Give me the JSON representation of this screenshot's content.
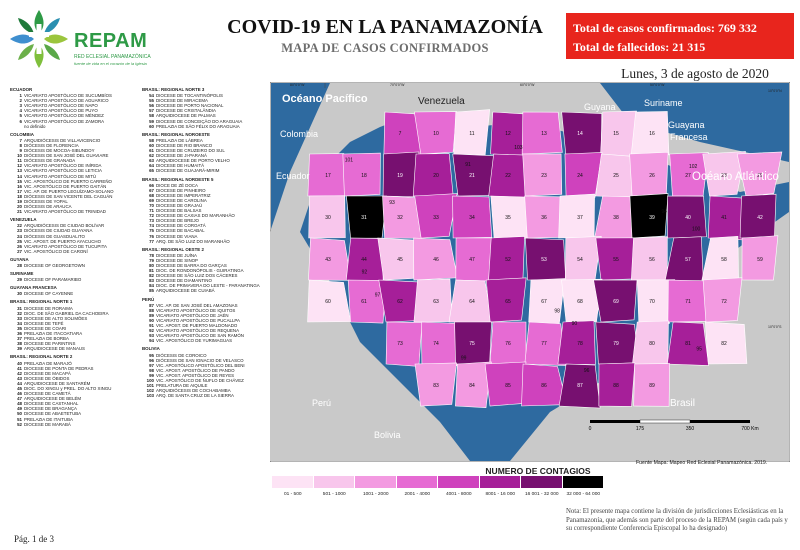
{
  "header": {
    "org_name": "REPAM",
    "org_sub": "RED ECLESIAL PANAMAZÓNICA",
    "org_tagline": "fuente de vida en el corazón de la Iglesia",
    "title": "COVID-19 EN LA PANAMAZONÍA",
    "subtitle": "MAPA DE CASOS CONFIRMADOS",
    "confirmed": "Total de casos confirmados: 769 332",
    "deaths": "Total de fallecidos: 21 315",
    "date": "Lunes, 3 de agosto de 2020"
  },
  "colors": {
    "brand_green": "#2e9a46",
    "stats_red": "#e8251d",
    "sea": "#2e6aa0",
    "bins": [
      "#fde3f5",
      "#f8c6ec",
      "#f39ae1",
      "#e66bd3",
      "#cf42bd",
      "#a61f99",
      "#771070",
      "#000000"
    ]
  },
  "map": {
    "labels": {
      "pacific": "Océano Pacífico",
      "atlantic": "Océano Atlántico",
      "venezuela": "Venezuela",
      "colombia": "Colombia",
      "ecuador": "Ecuador",
      "guyana": "Guyana",
      "suriname": "Suriname",
      "french_guiana": "Guayana Francesa",
      "peru": "Perú",
      "bolivia": "Bolivia",
      "brasil": "Brasil"
    },
    "lat_labels": [
      "10°0'0\"N",
      "10°0'0\"S"
    ],
    "lon_labels": [
      "70°0'0\"W",
      "60°0'0\"W",
      "50°0'0\"W",
      "80°0'0\"W"
    ],
    "scalebar": [
      "0",
      "175",
      "350",
      "700 Km"
    ],
    "source": "Fuente Mapa: Mapeo Red Eclesial Panamazónica. 2019."
  },
  "legend_title": "NUMERO DE CONTAGIOS",
  "bins": [
    "01 - 500",
    "501 - 1000",
    "1001 - 2000",
    "2001 - 4000",
    "4001 - 8000",
    "8001 - 16 000",
    "16 001 - 32 000",
    "32 000 - 64 000"
  ],
  "note": "Nota: El presente mapa contiene la división de jurisdicciones Eclesiásticas en la Panamazonía, que además son parte del proceso de la REPAM (según cada país y su correspondiente Conferencia Episcopal lo ha designado)",
  "page": "Pág. 1 de 3",
  "jurisdictions": {
    "col1": [
      {
        "section": "ECUADOR"
      },
      {
        "n": "1",
        "t": "VICARIATO APOSTÓLICO DE SUCUMBÍOS"
      },
      {
        "n": "2",
        "t": "VICARIATO APOSTÓLICO DE AGUARICO"
      },
      {
        "n": "3",
        "t": "VICARIATO APOSTÓLICO DE NAPO"
      },
      {
        "n": "4",
        "t": "VICARIATO APOSTÓLICO DE PUYO"
      },
      {
        "n": "5",
        "t": "VICARIATO APOSTÓLICO DE MÉNDEZ"
      },
      {
        "n": "6",
        "t": "VICARIATO APOSTÓLICO DE ZAMORA"
      },
      {
        "n": "",
        "t": "no definido"
      },
      {
        "section": "COLOMBIA"
      },
      {
        "n": "7",
        "t": "ARQUIDIÓCESIS DE VILLAVICENCIO"
      },
      {
        "n": "8",
        "t": "DIÓCESIS DE FLORENCIA"
      },
      {
        "n": "9",
        "t": "DIÓCESIS DE MOCOA-SIBUNDOY"
      },
      {
        "n": "10",
        "t": "DIÓCESIS DE SAN JOSÉ DEL GUAVIARE"
      },
      {
        "n": "11",
        "t": "DIÓCESIS DE GRANADA"
      },
      {
        "n": "12",
        "t": "VICARIATO APOSTÓLICO DE INÍRIDA"
      },
      {
        "n": "13",
        "t": "VICARIATO APOSTÓLICO DE LETICIA"
      },
      {
        "n": "14",
        "t": "VICARIATO APOSTÓLICO DE MITÚ"
      },
      {
        "n": "15",
        "t": "VIC. APOSTÓLICO DE PUERTO CARREÑO"
      },
      {
        "n": "16",
        "t": "VIC. APOSTÓLICO DE PUERTO GAITÁN"
      },
      {
        "n": "17",
        "t": "VIC. AP. DE PUERTO LEGUÍZAMO-SOLANO"
      },
      {
        "n": "18",
        "t": "DIÓCESIS DE SAN VICENTE DEL CAGUÁN"
      },
      {
        "n": "19",
        "t": "DIÓCESIS DE YOPAL"
      },
      {
        "n": "20",
        "t": "DIÓCESIS DE ARAUCA"
      },
      {
        "n": "21",
        "t": "VICARIATO APOSTÓLICO DE TRINIDAD"
      },
      {
        "section": "VENEZUELA"
      },
      {
        "n": "22",
        "t": "ARQUIDIÓCESIS DE CIUDAD BOLÍVAR"
      },
      {
        "n": "23",
        "t": "DIÓCESIS DE CIUDAD GUAYANA"
      },
      {
        "n": "24",
        "t": "DIÓCESIS DE GUASDUALITO"
      },
      {
        "n": "25",
        "t": "VIC. APOST. DE PUERTO AYACUCHO"
      },
      {
        "n": "26",
        "t": "VICARIATO APOSTÓLICO DE TUCUPITA"
      },
      {
        "n": "27",
        "t": "VIC. APOSTÓLICO DE CARONÍ"
      },
      {
        "section": "GUYANA"
      },
      {
        "n": "28",
        "t": "DIOCESE OF GEORGETOWN"
      },
      {
        "section": "SURINAME"
      },
      {
        "n": "29",
        "t": "DIOCESE OF PARAMARIBO"
      },
      {
        "section": "GUAYANA FRANCESA"
      },
      {
        "n": "30",
        "t": "DIOCESE OF CAYENNE"
      },
      {
        "section": "BRASIL: REGIONAL NORTE 1"
      },
      {
        "n": "31",
        "t": "DIOCESE DE RORAIMA"
      },
      {
        "n": "32",
        "t": "DIOC. DE SÃO GABRIEL DA CACHOEIRA"
      },
      {
        "n": "33",
        "t": "DIOCESE DE ALTO SOLIMÕES"
      },
      {
        "n": "34",
        "t": "DIOCESE DE TEFÉ"
      },
      {
        "n": "35",
        "t": "DIOCESE DE COARI"
      },
      {
        "n": "36",
        "t": "PRELAZIA DE ITACOATIARA"
      },
      {
        "n": "37",
        "t": "PRELAZIA DE BORBA"
      },
      {
        "n": "38",
        "t": "DIOCESE DE PARINTINS"
      },
      {
        "n": "39",
        "t": "ARQUIDIOCESE DE MANAUS"
      },
      {
        "section": "BRASIL: REGIONAL NORTE 2"
      },
      {
        "n": "40",
        "t": "PRELAZIA DE MARAJÓ"
      },
      {
        "n": "41",
        "t": "DIOCESE DE PONTA DE PEDRAS"
      },
      {
        "n": "42",
        "t": "DIOCESE DE MACAPÁ"
      },
      {
        "n": "43",
        "t": "DIOCESE DE ÓBIDOS"
      },
      {
        "n": "44",
        "t": "ARQUIDIOCESE DE SANTARÉM"
      },
      {
        "n": "45",
        "t": "DIOC. DO XINGU y PREL. DO ALTO XINGU"
      },
      {
        "n": "46",
        "t": "DIOCESE DE CAMETÁ"
      },
      {
        "n": "47",
        "t": "ARQUIDIOCESE DE BELÉM"
      },
      {
        "n": "48",
        "t": "DIOCESE DE CASTANHAL"
      },
      {
        "n": "49",
        "t": "DIOCESE DE BRAGANÇA"
      },
      {
        "n": "50",
        "t": "DIOCESE DE ABAETETUBA"
      },
      {
        "n": "51",
        "t": "PRELAZIA DE ITAITUBA"
      },
      {
        "n": "52",
        "t": "DIOCESE DE MARABÁ"
      }
    ],
    "col2": [
      {
        "section": "BRASIL: REGIONAL NORTE 3"
      },
      {
        "n": "54",
        "t": "DIOCESE DE TOCANTINÓPOLIS"
      },
      {
        "n": "55",
        "t": "DIOCESE DE MIRACEMA"
      },
      {
        "n": "56",
        "t": "DIOCESE DE PORTO NACIONAL"
      },
      {
        "n": "57",
        "t": "DIOCESE DE CRISTALÂNDIA"
      },
      {
        "n": "58",
        "t": "ARQUIDIOCESE DE PALMAS"
      },
      {
        "n": "59",
        "t": "DIOCESE DE CONCEIÇÃO DO ARAGUAIA"
      },
      {
        "n": "60",
        "t": "PRELAZIA DE SÃO FÉLIX DO ARAGUAIA"
      },
      {
        "section": "BRASIL: REGIONAL NOROESTE"
      },
      {
        "n": "58",
        "t": "PRELAZIA DE LÁBREA"
      },
      {
        "n": "60",
        "t": "DIOCESE DE RIO BRANCO"
      },
      {
        "n": "61",
        "t": "DIOCESE DE CRUZEIRO DO SUL"
      },
      {
        "n": "62",
        "t": "DIOCESE DE JI-PARANÁ"
      },
      {
        "n": "63",
        "t": "ARQUIDIOCESE DE PORTO VELHO"
      },
      {
        "n": "64",
        "t": "DIOCESE DE HUMAITÁ"
      },
      {
        "n": "65",
        "t": "DIOCESE DE GUAJARÁ-MIRIM"
      },
      {
        "section": "BRASIL: REGIONAL NORDESTE 5"
      },
      {
        "n": "66",
        "t": "DIOCE DE ZÉ DOCA"
      },
      {
        "n": "67",
        "t": "DIOCESE DE PINHEIRO"
      },
      {
        "n": "68",
        "t": "DIOCESE DE IMPERATRIZ"
      },
      {
        "n": "69",
        "t": "DIOCESE DE CAROLINA"
      },
      {
        "n": "70",
        "t": "DIOCESE DE GRAJAÚ"
      },
      {
        "n": "71",
        "t": "DIOCESE DE BALSAS"
      },
      {
        "n": "72",
        "t": "DIOCESE DE CAXIAS DO MARANHÃO"
      },
      {
        "n": "73",
        "t": "DIOCESE DE BREJO"
      },
      {
        "n": "74",
        "t": "DIOCESE DE COROATÁ"
      },
      {
        "n": "75",
        "t": "DIOCESE DE BACABAL"
      },
      {
        "n": "76",
        "t": "DIOCESE DE VIANA"
      },
      {
        "n": "77",
        "t": "ARQ. DE SÃO LUIZ DO MARANHÃO"
      },
      {
        "section": "BRASIL: REGIONAL OESTE 2"
      },
      {
        "n": "78",
        "t": "DIOCESE DE JUÍNA"
      },
      {
        "n": "79",
        "t": "DIOCESE DE SINOP"
      },
      {
        "n": "80",
        "t": "DIOCESE DE BARRA DO GARÇAS"
      },
      {
        "n": "81",
        "t": "DIOC. DE RONDONÓPOLIS - GUIRATINGA"
      },
      {
        "n": "82",
        "t": "DIOCESE DE SÃO LUIZ DOS CÁCERES"
      },
      {
        "n": "83",
        "t": "DIOCESE DE DIAMANTINO"
      },
      {
        "n": "84",
        "t": "DIOC. DE PRIMAVERA DO LESTE - PARANATINGA"
      },
      {
        "n": "85",
        "t": "ARQUIDIOCESE DE CUIABÁ"
      },
      {
        "section": "PERÚ"
      },
      {
        "n": "87",
        "t": "VIC. AP. DE SAN JOSÉ DEL AMAZONAS"
      },
      {
        "n": "88",
        "t": "VICARIATO APOSTÓLICO DE IQUITOS"
      },
      {
        "n": "89",
        "t": "VICARIATO APOSTÓLICO DE JAÉN"
      },
      {
        "n": "90",
        "t": "VICARIATO APOSTÓLICO DE PUCALLPA"
      },
      {
        "n": "91",
        "t": "VIC. APOST. DE PUERTO MALDONADO"
      },
      {
        "n": "92",
        "t": "VICARIATO APOSTÓLICO DE REQUENA"
      },
      {
        "n": "93",
        "t": "VICARIATO APOSTÓLICO DE SAN RAMÓN"
      },
      {
        "n": "94",
        "t": "VIC. APOSTÓLICO DE YURIMAGUAS"
      },
      {
        "section": "BOLIVIA"
      },
      {
        "n": "95",
        "t": "DIÓCESIS DE COROICO"
      },
      {
        "n": "96",
        "t": "DIÓCESIS DE SAN IGNACIO DE VELASCO"
      },
      {
        "n": "97",
        "t": "VIC. APOSTÓLICO APOSTÓLICO DEL BENI"
      },
      {
        "n": "98",
        "t": "VIC. APOST. APOSTÓLICO DE PANDO"
      },
      {
        "n": "99",
        "t": "VIC. APOST. APOSTÓLICO DE REYES"
      },
      {
        "n": "100",
        "t": "VIC. APOSTÓLICO DE ÑUFLO DE CHÁVEZ"
      },
      {
        "n": "101",
        "t": "PRELATURA DE AIQUILE"
      },
      {
        "n": "102",
        "t": "ARQUIDIÓCESIS DE COCHABAMBA"
      },
      {
        "n": "103",
        "t": "ARQ. DE SANTA CRUZ DE LA SIERRA"
      }
    ]
  },
  "region_numbers": [
    "7",
    "10",
    "11",
    "12",
    "13",
    "14",
    "15",
    "16",
    "17",
    "18",
    "19",
    "20",
    "21",
    "22",
    "23",
    "24",
    "25",
    "26",
    "27",
    "28",
    "29",
    "30",
    "31",
    "32",
    "33",
    "34",
    "35",
    "36",
    "37",
    "38",
    "39",
    "40",
    "41",
    "42",
    "43",
    "44",
    "45",
    "46",
    "47",
    "52",
    "53",
    "54",
    "55",
    "56",
    "57",
    "58",
    "59",
    "60",
    "61",
    "62",
    "63",
    "64",
    "65",
    "67",
    "68",
    "69",
    "70",
    "71",
    "72",
    "73",
    "74",
    "75",
    "76",
    "77",
    "78",
    "79",
    "80",
    "81",
    "82",
    "83",
    "84",
    "85",
    "86",
    "87",
    "88",
    "89",
    "90",
    "91",
    "92",
    "93",
    "94",
    "95",
    "96",
    "97",
    "98",
    "99",
    "100",
    "101",
    "102",
    "103"
  ]
}
